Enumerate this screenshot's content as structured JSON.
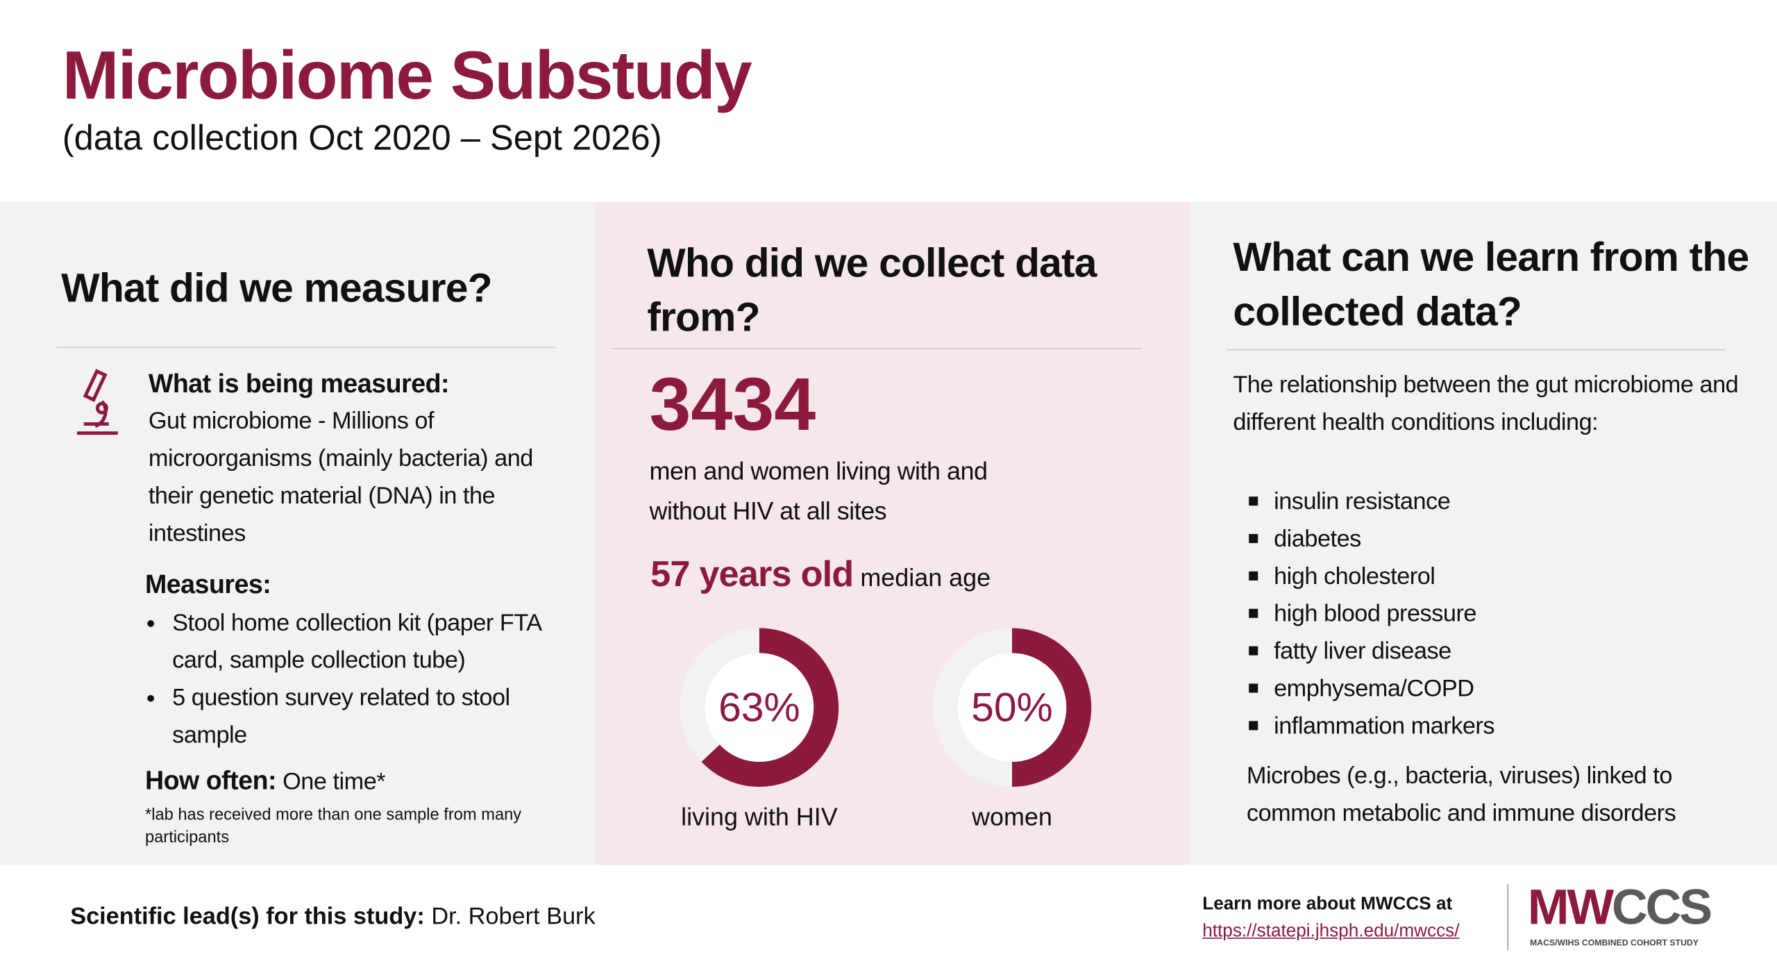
{
  "header": {
    "title": "Microbiome Substudy",
    "subtitle": "(data collection Oct 2020 – Sept 2026)"
  },
  "measure": {
    "heading": "What did we measure?",
    "what_label": "What is being measured:",
    "what_text": "Gut microbiome - Millions of microorganisms (mainly bacteria) and their genetic material (DNA) in the intestines",
    "measures_label": "Measures:",
    "measures": [
      "Stool home collection kit (paper FTA card, sample collection tube)",
      "5 question survey related to stool sample"
    ],
    "how_often_label": "How often:",
    "how_often": "One time*",
    "footnote": "*lab has received more than one sample from many participants"
  },
  "who": {
    "heading": "Who did we collect data from?",
    "count": 3434,
    "count_text": "men and women living with and without HIV at all sites",
    "age": "57 years old",
    "age_text": "median age",
    "donuts": [
      {
        "value": 63,
        "label": "63%",
        "caption": "living with HIV"
      },
      {
        "value": 50,
        "label": "50%",
        "caption": "women"
      }
    ]
  },
  "learn": {
    "heading": "What can we learn from the collected data?",
    "intro": "The relationship between the gut microbiome and different health conditions including:",
    "conditions": [
      "insulin resistance",
      "diabetes",
      "high cholesterol",
      "high blood pressure",
      "fatty liver disease",
      "emphysema/COPD",
      "inflammation markers"
    ],
    "outro": "Microbes (e.g., bacteria, viruses) linked to common metabolic and immune disorders"
  },
  "footer": {
    "lead_label": "Scientific lead(s) for this study:",
    "lead": "Dr. Robert Burk",
    "learn_more": "Learn more about MWCCS at",
    "url": "https://statepi.jhsph.edu/mwccs/",
    "logo_left": "MW",
    "logo_right": "CCS",
    "logo_tagline": "MACS/WIHS COMBINED COHORT STUDY"
  }
}
